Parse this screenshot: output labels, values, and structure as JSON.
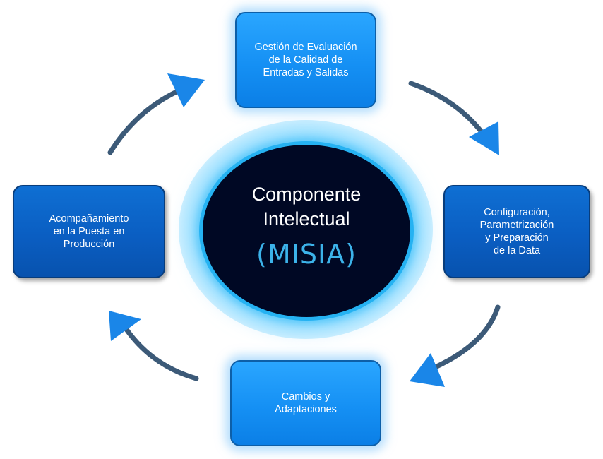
{
  "center": {
    "line1": "Componente",
    "line2": "Intelectual",
    "line3": "(MISIA)"
  },
  "steps": {
    "top": "Gestión  de Evaluación\nde  la Calidad  de\nEntradas  y Salidas",
    "right": "Configuración,\nParametrización\ny  Preparación\nde la Data",
    "bottom": "Cambios y\nAdaptaciones",
    "left": "Acompañamiento\nen la Puesta  en\nProducción"
  },
  "colors": {
    "light_box": "#1590f4",
    "dark_box": "#0a5ec2",
    "center_fill": "#000824",
    "center_ring": "#25b2f2",
    "misia_text": "#3cb3ea",
    "arrow_shaft": "#3c5a78",
    "arrow_head": "#1a86e8"
  },
  "cycle_direction": "clockwise"
}
